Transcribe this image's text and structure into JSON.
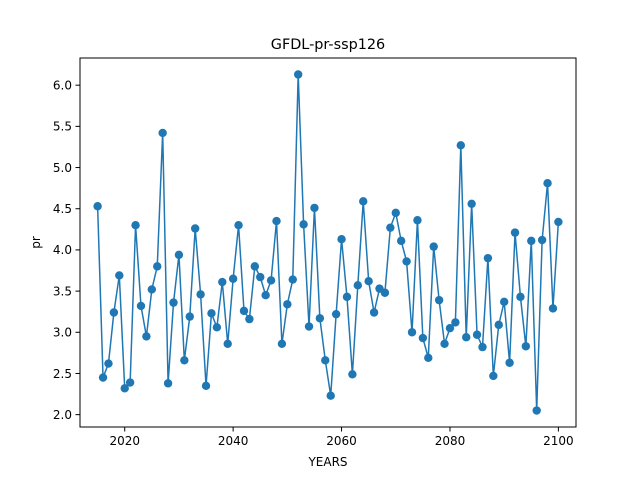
{
  "chart_data": {
    "type": "line",
    "title": "GFDL-pr-ssp126",
    "xlabel": "YEARS",
    "ylabel": "pr",
    "xlim": [
      2011.75,
      2103.25
    ],
    "ylim": [
      1.85,
      6.33
    ],
    "x_ticks": [
      2020,
      2040,
      2060,
      2080,
      2100
    ],
    "y_ticks": [
      2.0,
      2.5,
      3.0,
      3.5,
      4.0,
      4.5,
      5.0,
      5.5,
      6.0
    ],
    "x_tick_labels": [
      "2020",
      "2040",
      "2060",
      "2080",
      "2100"
    ],
    "y_tick_labels": [
      "2.0",
      "2.5",
      "3.0",
      "3.5",
      "4.0",
      "4.5",
      "5.0",
      "5.5",
      "6.0"
    ],
    "grid": false,
    "color": "#1f77b4",
    "marker": "circle",
    "series": [
      {
        "x": [
          2015,
          2016,
          2017,
          2018,
          2019,
          2020,
          2021,
          2022,
          2023,
          2024,
          2025,
          2026,
          2027,
          2028,
          2029,
          2030,
          2031,
          2032,
          2033,
          2034,
          2035,
          2036,
          2037,
          2038,
          2039,
          2040,
          2041,
          2042,
          2043,
          2044,
          2045,
          2046,
          2047,
          2048,
          2049,
          2050,
          2051,
          2052,
          2053,
          2054,
          2055,
          2056,
          2057,
          2058,
          2059,
          2060,
          2061,
          2062,
          2063,
          2064,
          2065,
          2066,
          2067,
          2068,
          2069,
          2070,
          2071,
          2072,
          2073,
          2074,
          2075,
          2076,
          2077,
          2078,
          2079,
          2080,
          2081,
          2082,
          2083,
          2084,
          2085,
          2086,
          2087,
          2088,
          2089,
          2090,
          2091,
          2092,
          2093,
          2094,
          2095,
          2096,
          2097,
          2098,
          2099,
          2100
        ],
        "values": [
          4.53,
          2.45,
          2.62,
          3.24,
          3.69,
          2.32,
          2.39,
          4.3,
          3.32,
          2.95,
          3.52,
          3.8,
          5.42,
          2.38,
          3.36,
          3.94,
          2.66,
          3.19,
          4.26,
          3.46,
          2.35,
          3.23,
          3.06,
          3.61,
          2.86,
          3.65,
          4.3,
          3.26,
          3.16,
          3.8,
          3.67,
          3.45,
          3.63,
          4.35,
          2.86,
          3.34,
          3.64,
          6.13,
          4.31,
          3.07,
          4.51,
          3.17,
          2.66,
          2.23,
          3.22,
          4.13,
          3.43,
          2.49,
          3.57,
          4.59,
          3.62,
          3.24,
          3.53,
          3.48,
          4.27,
          4.45,
          4.11,
          3.86,
          3.0,
          4.36,
          2.93,
          2.69,
          4.04,
          3.39,
          2.86,
          3.05,
          3.12,
          5.27,
          2.94,
          4.56,
          2.97,
          2.82,
          3.9,
          2.47,
          3.09,
          3.37,
          2.63,
          4.21,
          3.43,
          2.83,
          4.11,
          2.05,
          4.12,
          4.81,
          3.29,
          4.34
        ]
      }
    ]
  }
}
